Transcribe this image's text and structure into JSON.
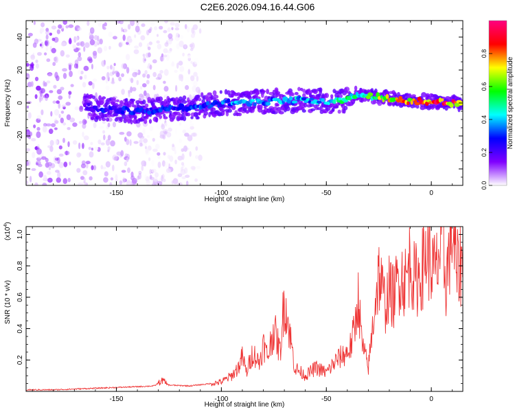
{
  "title": "C2E6.2026.094.16.44.G06",
  "chart_data": [
    {
      "type": "heatmap",
      "xlabel": "Height of straight line (km)",
      "ylabel": "Frequency (Hz)",
      "xlim": [
        -193,
        15
      ],
      "ylim": [
        -50,
        50
      ],
      "x_ticks": [
        -150,
        -100,
        -50,
        0
      ],
      "y_ticks": [
        -40,
        -20,
        0,
        20,
        40
      ],
      "colorbar": {
        "label": "Normalized spectral amplitude",
        "range": [
          0,
          1
        ],
        "ticks": [
          0.0,
          0.2,
          0.4,
          0.6,
          0.8
        ],
        "tick_labels": [
          "0.0",
          "0.2",
          "0.4",
          "0.6",
          "0.8"
        ],
        "colors": [
          "#ffffff",
          "#8000ff",
          "#0000ff",
          "#00ffff",
          "#00ff00",
          "#ffff00",
          "#ff0000",
          "#ff0080"
        ]
      },
      "ridge": {
        "x": [
          -165,
          -160,
          -150,
          -140,
          -130,
          -120,
          -110,
          -100,
          -90,
          -80,
          -70,
          -60,
          -50,
          -40,
          -35,
          -30,
          -20,
          -10,
          0,
          10,
          15
        ],
        "frequency": [
          -2,
          -3,
          -4,
          -5,
          -4,
          -3,
          -2,
          0,
          0,
          1,
          1,
          2,
          1,
          2,
          6,
          4,
          3,
          1,
          1,
          0,
          -1
        ],
        "amplitude": [
          0.22,
          0.28,
          0.3,
          0.3,
          0.32,
          0.3,
          0.32,
          0.35,
          0.4,
          0.38,
          0.4,
          0.42,
          0.4,
          0.55,
          0.5,
          0.6,
          0.75,
          0.85,
          0.9,
          0.9,
          0.6
        ]
      },
      "noise_region_x": [
        -193,
        -110
      ]
    },
    {
      "type": "line",
      "xlabel": "Height of straight line (km)",
      "ylabel": "SNR (10 * v/v)",
      "y_scale_label": "(x10",
      "y_scale_exponent": "4",
      "y_scale_suffix": ")",
      "xlim": [
        -193,
        15
      ],
      "ylim": [
        0,
        1.05
      ],
      "x_ticks": [
        -150,
        -100,
        -50,
        0
      ],
      "y_ticks": [
        0.2,
        0.4,
        0.6,
        0.8,
        1.0
      ],
      "color": "#ee3333",
      "series": [
        {
          "x": [
            -193,
            -180,
            -170,
            -160,
            -150,
            -140,
            -132,
            -128,
            -125,
            -115,
            -105,
            -100,
            -95,
            -92,
            -90,
            -88,
            -85,
            -82,
            -80,
            -78,
            -75,
            -72,
            -70,
            -65,
            -60,
            -55,
            -50,
            -45,
            -40,
            -38,
            -36,
            -35,
            -33,
            -30,
            -28,
            -27,
            -25,
            -22,
            -20,
            -18,
            -15,
            -12,
            -10,
            -8,
            -5,
            -2,
            0,
            2,
            5,
            7,
            10,
            12,
            15
          ],
          "y": [
            0.01,
            0.01,
            0.015,
            0.02,
            0.025,
            0.03,
            0.035,
            0.07,
            0.04,
            0.035,
            0.05,
            0.06,
            0.1,
            0.15,
            0.22,
            0.12,
            0.25,
            0.18,
            0.3,
            0.22,
            0.4,
            0.25,
            0.6,
            0.15,
            0.1,
            0.15,
            0.12,
            0.2,
            0.25,
            0.3,
            0.45,
            0.62,
            0.3,
            0.15,
            0.4,
            0.55,
            0.75,
            0.55,
            0.65,
            0.6,
            0.75,
            0.7,
            0.85,
            0.7,
            0.75,
            0.9,
            0.8,
            0.75,
            0.95,
            0.7,
            1.05,
            0.75,
            0.85
          ]
        }
      ]
    }
  ]
}
